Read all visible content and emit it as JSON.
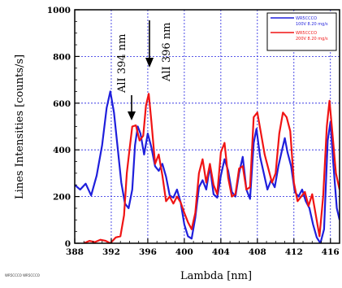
{
  "chart_data": {
    "type": "line",
    "xlabel": "Lambda  [nm]",
    "ylabel": "Lines Intensities   [counts/s]",
    "xlim": [
      388,
      417
    ],
    "ylim": [
      0,
      1000
    ],
    "x_ticks": [
      388,
      392,
      396,
      400,
      404,
      408,
      412,
      416
    ],
    "y_ticks": [
      0,
      200,
      400,
      600,
      800,
      1000
    ],
    "grid": true,
    "legend_position": "top-right",
    "series": [
      {
        "name": "WR5CCCO",
        "sublabel": "100V 8.20 mg/s",
        "color": "#1f1fdc",
        "points": [
          [
            388,
            250
          ],
          [
            388.6,
            230
          ],
          [
            389.2,
            255
          ],
          [
            389.8,
            205
          ],
          [
            390.4,
            290
          ],
          [
            391,
            420
          ],
          [
            391.5,
            580
          ],
          [
            391.9,
            650
          ],
          [
            392.3,
            560
          ],
          [
            392.7,
            410
          ],
          [
            393.1,
            260
          ],
          [
            393.5,
            170
          ],
          [
            393.9,
            150
          ],
          [
            394.3,
            230
          ],
          [
            394.6,
            420
          ],
          [
            394.9,
            500
          ],
          [
            395.2,
            470
          ],
          [
            395.6,
            380
          ],
          [
            396.0,
            470
          ],
          [
            396.4,
            410
          ],
          [
            396.8,
            330
          ],
          [
            397.2,
            310
          ],
          [
            397.6,
            340
          ],
          [
            398.0,
            285
          ],
          [
            398.4,
            205
          ],
          [
            398.8,
            195
          ],
          [
            399.2,
            230
          ],
          [
            399.6,
            175
          ],
          [
            400.0,
            80
          ],
          [
            400.4,
            30
          ],
          [
            400.8,
            20
          ],
          [
            401.2,
            110
          ],
          [
            401.6,
            240
          ],
          [
            402.0,
            270
          ],
          [
            402.4,
            230
          ],
          [
            402.8,
            330
          ],
          [
            403.2,
            210
          ],
          [
            403.6,
            195
          ],
          [
            404.0,
            290
          ],
          [
            404.4,
            360
          ],
          [
            404.8,
            310
          ],
          [
            405.2,
            220
          ],
          [
            405.6,
            200
          ],
          [
            406.0,
            300
          ],
          [
            406.4,
            370
          ],
          [
            406.8,
            230
          ],
          [
            407.2,
            190
          ],
          [
            407.6,
            430
          ],
          [
            407.9,
            490
          ],
          [
            408.3,
            370
          ],
          [
            408.7,
            300
          ],
          [
            409.1,
            230
          ],
          [
            409.5,
            270
          ],
          [
            409.9,
            240
          ],
          [
            410.3,
            330
          ],
          [
            410.7,
            400
          ],
          [
            411.0,
            450
          ],
          [
            411.3,
            390
          ],
          [
            411.7,
            330
          ],
          [
            412.1,
            220
          ],
          [
            412.5,
            200
          ],
          [
            412.9,
            230
          ],
          [
            413.3,
            180
          ],
          [
            413.7,
            150
          ],
          [
            414.1,
            80
          ],
          [
            414.5,
            25
          ],
          [
            414.9,
            0
          ],
          [
            415.3,
            60
          ],
          [
            415.7,
            440
          ],
          [
            416.0,
            520
          ],
          [
            416.3,
            350
          ],
          [
            416.7,
            150
          ],
          [
            417,
            100
          ]
        ]
      },
      {
        "name": "WR5CCCO",
        "sublabel": "200V 8.20 mg/s",
        "color": "#f01414",
        "points": [
          [
            389.0,
            0
          ],
          [
            389.6,
            10
          ],
          [
            390.2,
            5
          ],
          [
            390.8,
            15
          ],
          [
            391.4,
            10
          ],
          [
            391.9,
            0
          ],
          [
            392.5,
            25
          ],
          [
            393.0,
            30
          ],
          [
            393.4,
            120
          ],
          [
            393.7,
            300
          ],
          [
            394.0,
            400
          ],
          [
            394.3,
            500
          ],
          [
            394.7,
            505
          ],
          [
            395.1,
            440
          ],
          [
            395.5,
            460
          ],
          [
            395.8,
            590
          ],
          [
            396.1,
            640
          ],
          [
            396.4,
            520
          ],
          [
            396.8,
            340
          ],
          [
            397.2,
            380
          ],
          [
            397.6,
            290
          ],
          [
            398.0,
            180
          ],
          [
            398.4,
            200
          ],
          [
            398.8,
            170
          ],
          [
            399.2,
            200
          ],
          [
            399.6,
            175
          ],
          [
            400.0,
            130
          ],
          [
            400.4,
            90
          ],
          [
            400.8,
            60
          ],
          [
            401.2,
            130
          ],
          [
            401.6,
            300
          ],
          [
            402.0,
            360
          ],
          [
            402.4,
            260
          ],
          [
            402.8,
            340
          ],
          [
            403.2,
            250
          ],
          [
            403.6,
            210
          ],
          [
            404.0,
            390
          ],
          [
            404.4,
            430
          ],
          [
            404.8,
            280
          ],
          [
            405.2,
            200
          ],
          [
            405.6,
            210
          ],
          [
            406.0,
            320
          ],
          [
            406.4,
            330
          ],
          [
            406.8,
            230
          ],
          [
            407.2,
            240
          ],
          [
            407.6,
            540
          ],
          [
            408.0,
            560
          ],
          [
            408.4,
            470
          ],
          [
            408.8,
            380
          ],
          [
            409.2,
            320
          ],
          [
            409.6,
            260
          ],
          [
            410.0,
            300
          ],
          [
            410.4,
            470
          ],
          [
            410.8,
            560
          ],
          [
            411.2,
            540
          ],
          [
            411.6,
            480
          ],
          [
            412.0,
            260
          ],
          [
            412.4,
            180
          ],
          [
            412.8,
            200
          ],
          [
            413.2,
            220
          ],
          [
            413.6,
            160
          ],
          [
            414.0,
            210
          ],
          [
            414.4,
            120
          ],
          [
            414.8,
            30
          ],
          [
            415.2,
            200
          ],
          [
            415.6,
            500
          ],
          [
            415.9,
            610
          ],
          [
            416.2,
            480
          ],
          [
            416.6,
            300
          ],
          [
            417,
            230
          ]
        ]
      }
    ],
    "annotations": [
      {
        "text": "AlI 394 nm",
        "x": 394.0,
        "y": 500
      },
      {
        "text": "AlI 396 nm",
        "x": 396.1,
        "y": 640
      }
    ]
  },
  "footnote": "WR5CCCO WR5CCCO"
}
